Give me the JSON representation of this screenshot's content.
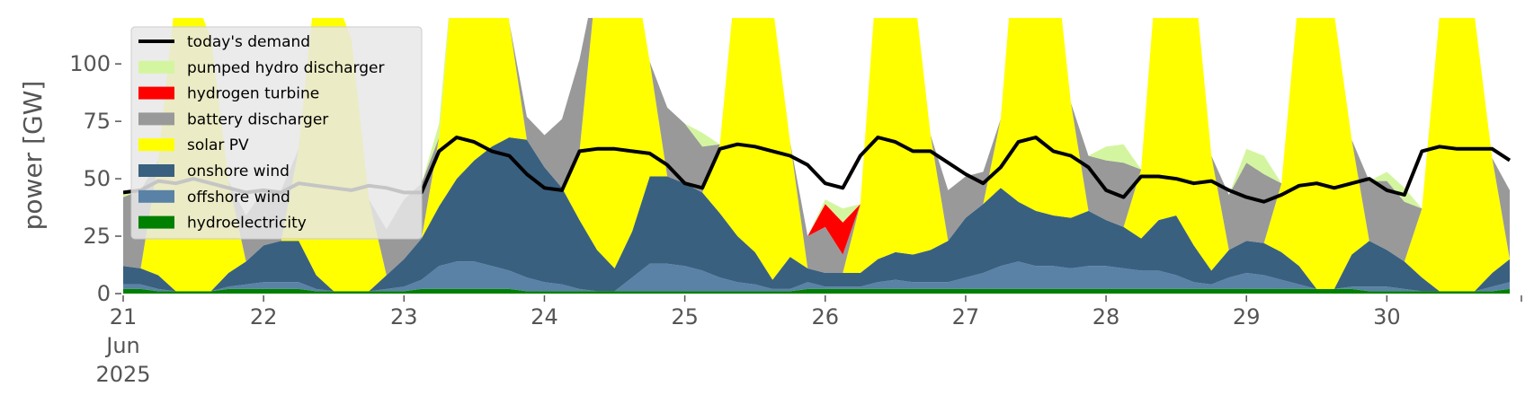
{
  "chart_data": {
    "type": "area",
    "title": "",
    "xlabel": "",
    "ylabel": "power [GW]",
    "ylim": [
      0,
      120
    ],
    "xlim": [
      "2025-06-21",
      "2025-06-30T23:00"
    ],
    "yticks": [
      0,
      25,
      50,
      75,
      100
    ],
    "xticks": [
      {
        "date": "2025-06-21",
        "label": "21",
        "sub": [
          "Jun",
          "2025"
        ]
      },
      {
        "date": "2025-06-22",
        "label": "22"
      },
      {
        "date": "2025-06-23",
        "label": "23"
      },
      {
        "date": "2025-06-24",
        "label": "24"
      },
      {
        "date": "2025-06-25",
        "label": "25"
      },
      {
        "date": "2025-06-26",
        "label": "26"
      },
      {
        "date": "2025-06-27",
        "label": "27"
      },
      {
        "date": "2025-06-28",
        "label": "28"
      },
      {
        "date": "2025-06-29",
        "label": "29"
      },
      {
        "date": "2025-06-30",
        "label": "30"
      }
    ],
    "grid": false,
    "legend_position": "top-left",
    "x": [
      "2025-06-21 00:00",
      "2025-06-21 03:00",
      "2025-06-21 06:00",
      "2025-06-21 09:00",
      "2025-06-21 12:00",
      "2025-06-21 15:00",
      "2025-06-21 18:00",
      "2025-06-21 21:00",
      "2025-06-22 00:00",
      "2025-06-22 03:00",
      "2025-06-22 06:00",
      "2025-06-22 09:00",
      "2025-06-22 12:00",
      "2025-06-22 15:00",
      "2025-06-22 18:00",
      "2025-06-22 21:00",
      "2025-06-23 00:00",
      "2025-06-23 03:00",
      "2025-06-23 06:00",
      "2025-06-23 09:00",
      "2025-06-23 12:00",
      "2025-06-23 15:00",
      "2025-06-23 18:00",
      "2025-06-23 21:00",
      "2025-06-24 00:00",
      "2025-06-24 03:00",
      "2025-06-24 06:00",
      "2025-06-24 09:00",
      "2025-06-24 12:00",
      "2025-06-24 15:00",
      "2025-06-24 18:00",
      "2025-06-24 21:00",
      "2025-06-25 00:00",
      "2025-06-25 03:00",
      "2025-06-25 06:00",
      "2025-06-25 09:00",
      "2025-06-25 12:00",
      "2025-06-25 15:00",
      "2025-06-25 18:00",
      "2025-06-25 21:00",
      "2025-06-26 00:00",
      "2025-06-26 03:00",
      "2025-06-26 06:00",
      "2025-06-26 09:00",
      "2025-06-26 12:00",
      "2025-06-26 15:00",
      "2025-06-26 18:00",
      "2025-06-26 21:00",
      "2025-06-27 00:00",
      "2025-06-27 03:00",
      "2025-06-27 06:00",
      "2025-06-27 09:00",
      "2025-06-27 12:00",
      "2025-06-27 15:00",
      "2025-06-27 18:00",
      "2025-06-27 21:00",
      "2025-06-28 00:00",
      "2025-06-28 03:00",
      "2025-06-28 06:00",
      "2025-06-28 09:00",
      "2025-06-28 12:00",
      "2025-06-28 15:00",
      "2025-06-28 18:00",
      "2025-06-28 21:00",
      "2025-06-29 00:00",
      "2025-06-29 03:00",
      "2025-06-29 06:00",
      "2025-06-29 09:00",
      "2025-06-29 12:00",
      "2025-06-29 15:00",
      "2025-06-29 18:00",
      "2025-06-29 21:00",
      "2025-06-30 00:00",
      "2025-06-30 03:00",
      "2025-06-30 06:00",
      "2025-06-30 09:00",
      "2025-06-30 12:00",
      "2025-06-30 15:00",
      "2025-06-30 18:00",
      "2025-06-30 21:00"
    ],
    "stack": [
      {
        "name": "hydroelectricity",
        "color": "#008000",
        "values": [
          2,
          2,
          1,
          1,
          1,
          1,
          2,
          2,
          2,
          2,
          2,
          1,
          1,
          1,
          1,
          1,
          1,
          2,
          2,
          2,
          2,
          2,
          2,
          1,
          1,
          1,
          1,
          1,
          1,
          1,
          1,
          1,
          1,
          1,
          1,
          1,
          1,
          1,
          1,
          2,
          2,
          2,
          2,
          2,
          2,
          2,
          2,
          2,
          2,
          2,
          2,
          2,
          2,
          2,
          2,
          2,
          2,
          2,
          2,
          2,
          2,
          2,
          2,
          2,
          2,
          2,
          2,
          2,
          2,
          2,
          2,
          1,
          1,
          1,
          1,
          1,
          1,
          1,
          1,
          2
        ]
      },
      {
        "name": "offshore wind",
        "color": "#5a82a6",
        "values": [
          2,
          2,
          1,
          0,
          0,
          0,
          1,
          2,
          3,
          3,
          3,
          1,
          0,
          0,
          0,
          1,
          2,
          4,
          10,
          12,
          12,
          10,
          8,
          6,
          4,
          3,
          1,
          0,
          0,
          6,
          12,
          12,
          11,
          9,
          6,
          4,
          3,
          1,
          1,
          3,
          1,
          1,
          1,
          3,
          4,
          3,
          3,
          3,
          5,
          7,
          10,
          12,
          10,
          10,
          9,
          10,
          10,
          9,
          8,
          8,
          6,
          3,
          2,
          5,
          7,
          6,
          4,
          2,
          0,
          0,
          1,
          2,
          2,
          1,
          0,
          0,
          0,
          0,
          2,
          3
        ]
      },
      {
        "name": "onshore wind",
        "color": "#3a6080",
        "values": [
          8,
          7,
          6,
          0,
          0,
          0,
          6,
          10,
          16,
          18,
          18,
          6,
          0,
          0,
          0,
          6,
          12,
          18,
          26,
          36,
          44,
          52,
          58,
          60,
          50,
          42,
          30,
          18,
          10,
          20,
          38,
          38,
          36,
          34,
          28,
          20,
          14,
          4,
          14,
          6,
          6,
          6,
          6,
          10,
          12,
          12,
          14,
          18,
          26,
          30,
          34,
          26,
          24,
          22,
          22,
          24,
          20,
          18,
          14,
          22,
          26,
          16,
          6,
          12,
          14,
          14,
          12,
          8,
          0,
          0,
          14,
          20,
          16,
          12,
          6,
          0,
          0,
          0,
          6,
          10
        ]
      },
      {
        "name": "solar PV",
        "color": "#ffff00",
        "values": [
          0,
          0,
          50,
          130,
          130,
          110,
          40,
          0,
          0,
          0,
          40,
          130,
          130,
          110,
          40,
          0,
          0,
          0,
          30,
          110,
          130,
          120,
          50,
          0,
          0,
          0,
          30,
          120,
          130,
          120,
          50,
          0,
          0,
          0,
          30,
          120,
          130,
          120,
          50,
          0,
          0,
          0,
          30,
          130,
          130,
          120,
          50,
          0,
          0,
          0,
          30,
          130,
          130,
          120,
          50,
          0,
          0,
          0,
          30,
          120,
          130,
          120,
          50,
          0,
          0,
          0,
          30,
          120,
          130,
          120,
          50,
          0,
          0,
          0,
          30,
          120,
          130,
          120,
          50,
          0
        ]
      },
      {
        "name": "battery discharger",
        "color": "#999999",
        "values": [
          30,
          34,
          0,
          0,
          0,
          0,
          0,
          20,
          24,
          22,
          0,
          0,
          0,
          0,
          0,
          20,
          26,
          24,
          0,
          0,
          0,
          0,
          0,
          10,
          14,
          30,
          40,
          0,
          0,
          0,
          0,
          30,
          26,
          20,
          0,
          0,
          0,
          0,
          0,
          14,
          20,
          8,
          0,
          0,
          0,
          0,
          0,
          22,
          18,
          14,
          0,
          0,
          0,
          0,
          0,
          24,
          26,
          28,
          0,
          0,
          0,
          0,
          0,
          24,
          34,
          30,
          0,
          0,
          0,
          0,
          0,
          26,
          30,
          26,
          0,
          0,
          0,
          0,
          0,
          30
        ]
      },
      {
        "name": "hydrogen turbine",
        "color": "#ff0000",
        "values": [
          0,
          0,
          0,
          0,
          0,
          0,
          0,
          0,
          0,
          0,
          0,
          0,
          0,
          0,
          0,
          0,
          0,
          0,
          0,
          0,
          0,
          0,
          0,
          0,
          0,
          0,
          0,
          0,
          0,
          0,
          0,
          0,
          0,
          0,
          0,
          0,
          0,
          0,
          0,
          0,
          10,
          14,
          0,
          0,
          0,
          0,
          0,
          0,
          0,
          0,
          0,
          0,
          0,
          0,
          0,
          0,
          0,
          0,
          0,
          0,
          0,
          0,
          0,
          0,
          0,
          0,
          0,
          0,
          0,
          0,
          0,
          0,
          0,
          0,
          0,
          0,
          0,
          0,
          0,
          0
        ]
      },
      {
        "name": "pumped hydro discharger",
        "color": "#d4f5a0",
        "values": [
          2,
          0,
          0,
          0,
          0,
          0,
          0,
          0,
          0,
          0,
          0,
          0,
          0,
          0,
          0,
          0,
          0,
          0,
          6,
          0,
          0,
          0,
          0,
          0,
          0,
          0,
          0,
          0,
          0,
          0,
          0,
          0,
          0,
          6,
          0,
          0,
          0,
          0,
          0,
          0,
          2,
          6,
          0,
          0,
          0,
          0,
          0,
          0,
          0,
          0,
          0,
          0,
          0,
          0,
          0,
          0,
          6,
          8,
          0,
          0,
          0,
          0,
          0,
          0,
          6,
          8,
          0,
          0,
          0,
          0,
          0,
          0,
          4,
          6,
          0,
          0,
          0,
          0,
          0,
          0
        ]
      }
    ],
    "line": {
      "name": "today's demand",
      "color": "#000000",
      "values": [
        44,
        45,
        49,
        48,
        50,
        48,
        46,
        44,
        45,
        44,
        48,
        47,
        46,
        45,
        47,
        46,
        44,
        44,
        62,
        68,
        66,
        62,
        60,
        52,
        46,
        45,
        62,
        63,
        63,
        62,
        61,
        56,
        48,
        46,
        63,
        65,
        64,
        62,
        60,
        56,
        48,
        46,
        60,
        68,
        66,
        62,
        62,
        57,
        52,
        48,
        55,
        66,
        68,
        62,
        60,
        55,
        45,
        42,
        51,
        51,
        50,
        48,
        49,
        45,
        42,
        40,
        43,
        47,
        48,
        46,
        48,
        50,
        45,
        43,
        62,
        64,
        63,
        63,
        63,
        58
      ]
    },
    "legend": [
      {
        "label": "today's demand",
        "color": "#000000",
        "kind": "line"
      },
      {
        "label": "pumped hydro discharger",
        "color": "#d4f5a0",
        "kind": "patch"
      },
      {
        "label": "hydrogen turbine",
        "color": "#ff0000",
        "kind": "patch"
      },
      {
        "label": "battery discharger",
        "color": "#999999",
        "kind": "patch"
      },
      {
        "label": "solar PV",
        "color": "#ffff00",
        "kind": "patch"
      },
      {
        "label": "onshore wind",
        "color": "#3a6080",
        "kind": "patch"
      },
      {
        "label": "offshore wind",
        "color": "#5a82a6",
        "kind": "patch"
      },
      {
        "label": "hydroelectricity",
        "color": "#008000",
        "kind": "patch"
      }
    ]
  }
}
